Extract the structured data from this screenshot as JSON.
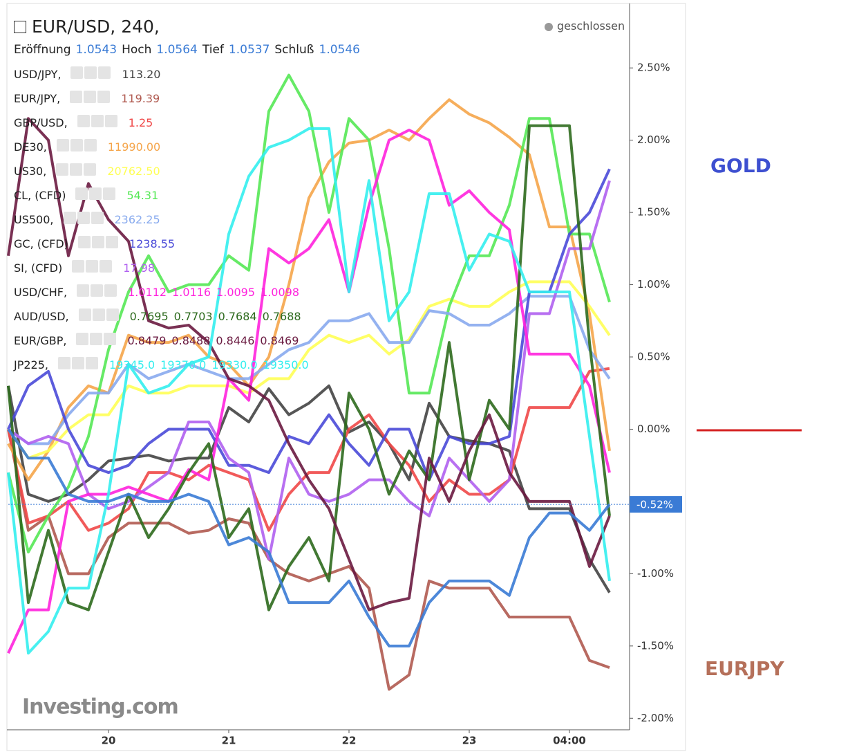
{
  "chart_data": {
    "type": "line",
    "title": "EUR/USD, 240,",
    "status": "geschlossen",
    "ohlc": [
      {
        "label": "Eröffnung",
        "value": "1.0543"
      },
      {
        "label": "Hoch",
        "value": "1.0564"
      },
      {
        "label": "Tief",
        "value": "1.0537"
      },
      {
        "label": "Schluß",
        "value": "1.0546"
      }
    ],
    "x": [
      0,
      1,
      2,
      3,
      4,
      5,
      6,
      7,
      8,
      9,
      10,
      11,
      12,
      13,
      14,
      15,
      16,
      17,
      18,
      19,
      20,
      21,
      22,
      23,
      24,
      25,
      26,
      27,
      28,
      29,
      30
    ],
    "xlim": [
      0,
      31
    ],
    "xticks": [
      {
        "value": 5,
        "label": "20"
      },
      {
        "value": 11,
        "label": "21"
      },
      {
        "value": 17,
        "label": "22"
      },
      {
        "value": 23,
        "label": "23"
      },
      {
        "value": 28,
        "label": "04:00"
      }
    ],
    "ylim": [
      -2.08,
      2.97
    ],
    "yticks": [
      {
        "value": 2.5,
        "label": "2.50%"
      },
      {
        "value": 2.0,
        "label": "2.00%"
      },
      {
        "value": 1.5,
        "label": "1.50%"
      },
      {
        "value": 1.0,
        "label": "1.00%"
      },
      {
        "value": 0.5,
        "label": "0.50%"
      },
      {
        "value": 0,
        "label": "0.00%"
      },
      {
        "value": -0.5,
        "label": "-0.50%"
      },
      {
        "value": -1.0,
        "label": "-1.00%"
      },
      {
        "value": -1.5,
        "label": "-1.50%"
      },
      {
        "value": -2.0,
        "label": "-2.00%"
      }
    ],
    "current_value": {
      "value": -0.52,
      "label": "-0.52%"
    },
    "watermark": "Investing.com",
    "annotations": [
      {
        "text": "GOLD",
        "color": "#3d4fd0"
      },
      {
        "text": "EURJPY",
        "color": "#b5705a"
      }
    ],
    "series": [
      {
        "name": "USD/JPY,",
        "color": "#444444",
        "legend_values": [
          "113.20"
        ],
        "values": [
          0.3,
          -0.45,
          -0.5,
          -0.45,
          -0.35,
          -0.22,
          -0.2,
          -0.18,
          -0.22,
          -0.2,
          -0.2,
          0.15,
          0.05,
          0.28,
          0.1,
          0.18,
          0.3,
          -0.02,
          0.05,
          -0.1,
          -0.35,
          0.18,
          -0.05,
          -0.08,
          -0.1,
          -0.15,
          -0.55,
          -0.55,
          -0.55,
          -0.9,
          -1.13
        ]
      },
      {
        "name": "EUR/JPY,",
        "color": "#b05a50",
        "legend_values": [
          "119.39"
        ],
        "values": [
          0,
          -0.7,
          -0.6,
          -1.0,
          -1.0,
          -0.75,
          -0.65,
          -0.65,
          -0.65,
          -0.72,
          -0.7,
          -0.62,
          -0.65,
          -0.9,
          -1.0,
          -1.05,
          -1.0,
          -0.95,
          -1.1,
          -1.8,
          -1.7,
          -1.05,
          -1.1,
          -1.1,
          -1.1,
          -1.3,
          -1.3,
          -1.3,
          -1.3,
          -1.6,
          -1.65
        ]
      },
      {
        "name": "GBP/USD,",
        "color": "#f04848",
        "legend_values": [
          "1.25"
        ],
        "values": [
          0,
          -0.65,
          -0.6,
          -0.5,
          -0.7,
          -0.65,
          -0.55,
          -0.3,
          -0.3,
          -0.35,
          -0.25,
          -0.3,
          -0.35,
          -0.7,
          -0.45,
          -0.3,
          -0.3,
          0.0,
          0.1,
          -0.1,
          -0.25,
          -0.5,
          -0.35,
          -0.45,
          -0.45,
          -0.35,
          0.15,
          0.15,
          0.15,
          0.4,
          0.42
        ]
      },
      {
        "name": "DE30,",
        "color": "#f5a54a",
        "legend_values": [
          "11990.00"
        ],
        "values": [
          -0.1,
          -0.35,
          -0.15,
          0.15,
          0.3,
          0.25,
          0.65,
          0.6,
          0.6,
          0.65,
          0.5,
          0.45,
          0.3,
          0.5,
          1.0,
          1.6,
          1.85,
          1.98,
          2.0,
          2.07,
          2.0,
          2.15,
          2.28,
          2.18,
          2.12,
          2.02,
          1.9,
          1.4,
          1.4,
          0.8,
          -0.15
        ]
      },
      {
        "name": "US30,",
        "color": "#ffff55",
        "legend_values": [
          "20762.50"
        ],
        "values": [
          0,
          -0.2,
          -0.15,
          0,
          0.1,
          0.1,
          0.3,
          0.25,
          0.25,
          0.3,
          0.3,
          0.3,
          0.25,
          0.35,
          0.35,
          0.55,
          0.65,
          0.6,
          0.65,
          0.52,
          0.62,
          0.85,
          0.9,
          0.85,
          0.85,
          0.95,
          1.02,
          1.02,
          1.02,
          0.85,
          0.65
        ]
      },
      {
        "name": "CL, (CFD)",
        "color": "#55e855",
        "legend_values": [
          "54.31"
        ],
        "values": [
          -0.3,
          -0.85,
          -0.6,
          -0.4,
          -0.05,
          0.55,
          0.95,
          1.2,
          0.95,
          1.0,
          1.0,
          1.2,
          1.1,
          2.2,
          2.45,
          2.2,
          1.5,
          2.15,
          2.0,
          1.25,
          0.25,
          0.25,
          0.85,
          1.2,
          1.2,
          1.55,
          2.15,
          2.15,
          1.35,
          1.35,
          0.88
        ]
      },
      {
        "name": "US500,",
        "color": "#88aaee",
        "legend_values": [
          "2362.25"
        ],
        "values": [
          0,
          -0.1,
          -0.1,
          0.1,
          0.25,
          0.25,
          0.45,
          0.35,
          0.4,
          0.45,
          0.4,
          0.35,
          0.35,
          0.45,
          0.55,
          0.6,
          0.75,
          0.75,
          0.8,
          0.6,
          0.6,
          0.82,
          0.8,
          0.72,
          0.72,
          0.8,
          0.92,
          0.92,
          0.92,
          0.55,
          0.35
        ]
      },
      {
        "name": "GC, (CFD)",
        "color": "#4a4ad8",
        "legend_values": [
          "1238.55"
        ],
        "values": [
          0,
          0.3,
          0.4,
          0.0,
          -0.25,
          -0.3,
          -0.25,
          -0.1,
          0,
          0,
          0,
          -0.25,
          -0.25,
          -0.3,
          -0.05,
          -0.1,
          0.1,
          -0.1,
          -0.25,
          0,
          0,
          -0.35,
          -0.05,
          -0.1,
          -0.1,
          -0.05,
          0.95,
          0.95,
          1.35,
          1.5,
          1.8
        ]
      },
      {
        "name": "SI, (CFD)",
        "color": "#b060f0",
        "legend_values": [
          "17.98"
        ],
        "values": [
          0,
          -0.1,
          -0.05,
          -0.1,
          -0.45,
          -0.55,
          -0.5,
          -0.4,
          -0.3,
          0.05,
          0.05,
          -0.2,
          -0.3,
          -0.9,
          -0.2,
          -0.45,
          -0.5,
          -0.45,
          -0.35,
          -0.35,
          -0.5,
          -0.6,
          -0.2,
          -0.35,
          -0.5,
          -0.35,
          0.8,
          0.8,
          1.25,
          1.25,
          1.72
        ]
      },
      {
        "name": "USD/CHF,",
        "color": "#ff22dd",
        "legend_values": [
          "1.0112",
          "1.0116",
          "1.0095",
          "1.0098"
        ],
        "values": [
          -1.55,
          -1.25,
          -1.25,
          -0.5,
          -0.45,
          -0.45,
          -0.4,
          -0.45,
          -0.5,
          -0.28,
          -0.35,
          0.35,
          0.2,
          1.25,
          1.15,
          1.25,
          1.45,
          0.95,
          1.55,
          2.0,
          2.07,
          2.0,
          1.55,
          1.65,
          1.5,
          1.38,
          0.52,
          0.52,
          0.52,
          0.3,
          -0.3
        ]
      },
      {
        "name": "AUD/USD,",
        "color": "#2d6a1d",
        "legend_values": [
          "0.7695",
          "0.7703",
          "0.7684",
          "0.7688"
        ],
        "values": [
          0.3,
          -1.2,
          -0.7,
          -1.2,
          -1.25,
          -0.85,
          -0.45,
          -0.75,
          -0.55,
          -0.3,
          -0.1,
          -0.75,
          -0.55,
          -1.25,
          -0.95,
          -0.75,
          -1.05,
          0.25,
          0.0,
          -0.45,
          -0.15,
          -0.35,
          0.6,
          -0.35,
          0.2,
          0.0,
          2.1,
          2.1,
          2.1,
          0.6,
          -0.6
        ]
      },
      {
        "name": "EUR/GBP,",
        "color": "#6a1a40",
        "legend_values": [
          "0.8479",
          "0.8488",
          "0.8446",
          "0.8469"
        ],
        "values": [
          1.2,
          2.15,
          2.0,
          1.2,
          1.7,
          1.45,
          1.3,
          0.75,
          0.7,
          0.72,
          0.6,
          0.35,
          0.3,
          0.2,
          -0.1,
          -0.35,
          -0.55,
          -0.9,
          -1.25,
          -1.2,
          -1.17,
          -0.2,
          -0.5,
          -0.15,
          0.1,
          -0.3,
          -0.5,
          -0.5,
          -0.5,
          -0.95,
          -0.6
        ]
      },
      {
        "name": "JP225,",
        "color": "#33eeee",
        "legend_values": [
          "19345.0",
          "19370.0",
          "19330.0",
          "19350.0"
        ],
        "values": [
          -0.3,
          -1.55,
          -1.4,
          -1.1,
          -1.1,
          -0.45,
          0.45,
          0.25,
          0.3,
          0.45,
          0.5,
          1.35,
          1.75,
          1.95,
          2.0,
          2.08,
          2.08,
          0.95,
          1.72,
          0.75,
          0.95,
          1.63,
          1.63,
          1.1,
          1.35,
          1.3,
          0.95,
          0.95,
          0.95,
          -0.05,
          -1.05
        ]
      },
      {
        "name": "EUR/USD",
        "color": "#3a7bd5",
        "values": [
          0,
          -0.2,
          -0.2,
          -0.45,
          -0.5,
          -0.5,
          -0.45,
          -0.5,
          -0.5,
          -0.45,
          -0.5,
          -0.8,
          -0.75,
          -0.85,
          -1.2,
          -1.2,
          -1.2,
          -1.05,
          -1.3,
          -1.5,
          -1.5,
          -1.2,
          -1.05,
          -1.05,
          -1.05,
          -1.15,
          -0.75,
          -0.58,
          -0.58,
          -0.7,
          -0.52
        ]
      }
    ]
  }
}
